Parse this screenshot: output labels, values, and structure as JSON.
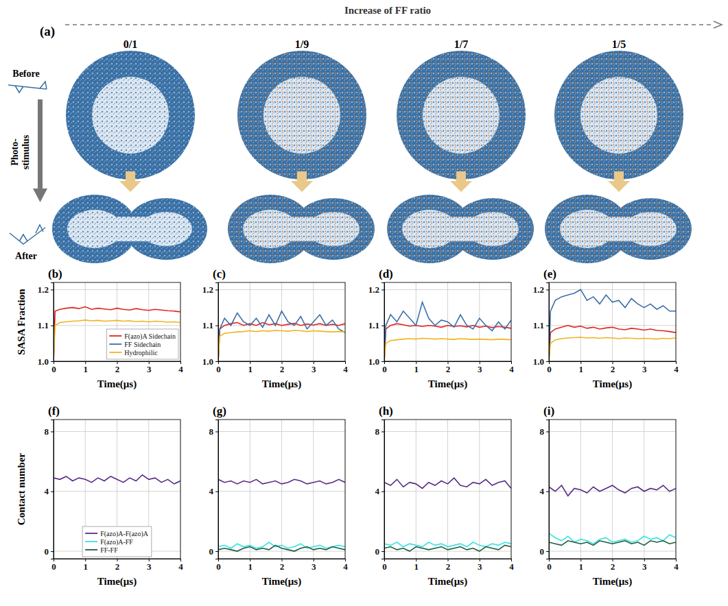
{
  "figure": {
    "title": "Increase of FF ratio",
    "label": "(a)",
    "ratios": [
      "0/1",
      "1/9",
      "1/7",
      "1/5"
    ],
    "before": "Before",
    "after": "After",
    "stimulus": "Photo-stimulus"
  },
  "chart_data": [
    {
      "type": "line",
      "title": "(b)",
      "xlabel": "Time(μs)",
      "ylabel": "SASA Fraction",
      "xlim": [
        0,
        4
      ],
      "xticks": [
        0,
        1,
        2,
        3,
        4
      ],
      "ylim": [
        1,
        1.22
      ],
      "yticks": [
        {
          "value": 1,
          "label": "1.0"
        },
        1.1,
        1.2
      ],
      "grid": true,
      "legend": "lower right",
      "x": [
        0,
        0.05,
        0.2,
        0.4,
        0.6,
        0.8,
        1.0,
        1.2,
        1.4,
        1.6,
        1.8,
        2.0,
        2.2,
        2.4,
        2.6,
        2.8,
        3.0,
        3.2,
        3.4,
        3.6,
        3.8,
        4.0
      ],
      "series": [
        {
          "name": "F(azo)A Sidechain",
          "color": "#e3231d",
          "values": [
            1,
            1.14,
            1.145,
            1.148,
            1.15,
            1.147,
            1.152,
            1.145,
            1.148,
            1.146,
            1.144,
            1.148,
            1.145,
            1.143,
            1.147,
            1.144,
            1.142,
            1.145,
            1.143,
            1.141,
            1.14,
            1.138
          ]
        },
        {
          "name": "FF Sidechain",
          "color": "#3b6fa8",
          "values": [
            null,
            null,
            null,
            null,
            null,
            null,
            null,
            null,
            null,
            null,
            null,
            null,
            null,
            null,
            null,
            null,
            null,
            null,
            null,
            null,
            null,
            null
          ]
        },
        {
          "name": "Hydrophilic",
          "color": "#f2b31c",
          "values": [
            1,
            1.1,
            1.108,
            1.11,
            1.112,
            1.113,
            1.115,
            1.113,
            1.114,
            1.112,
            1.113,
            1.114,
            1.112,
            1.113,
            1.111,
            1.112,
            1.11,
            1.112,
            1.111,
            1.109,
            1.11,
            1.108
          ]
        }
      ]
    },
    {
      "type": "line",
      "title": "(c)",
      "xlabel": "Time(μs)",
      "xlim": [
        0,
        4
      ],
      "xticks": [
        0,
        1,
        2,
        3,
        4
      ],
      "ylim": [
        1,
        1.22
      ],
      "yticks": [
        {
          "value": 1,
          "label": "1.0"
        },
        1.1,
        1.2
      ],
      "grid": true,
      "x": [
        0,
        0.05,
        0.2,
        0.4,
        0.6,
        0.8,
        1.0,
        1.2,
        1.4,
        1.6,
        1.8,
        2.0,
        2.2,
        2.4,
        2.6,
        2.8,
        3.0,
        3.2,
        3.4,
        3.6,
        3.8,
        4.0
      ],
      "series": [
        {
          "name": "F(azo)A Sidechain",
          "color": "#e3231d",
          "values": [
            1,
            1.09,
            1.1,
            1.105,
            1.108,
            1.1,
            1.105,
            1.1,
            1.108,
            1.102,
            1.105,
            1.1,
            1.103,
            1.106,
            1.1,
            1.104,
            1.101,
            1.105,
            1.1,
            1.103,
            1.1,
            1.105
          ]
        },
        {
          "name": "FF Sidechain",
          "color": "#3b6fa8",
          "values": [
            1,
            1.09,
            1.12,
            1.1,
            1.135,
            1.11,
            1.1,
            1.12,
            1.095,
            1.13,
            1.1,
            1.14,
            1.11,
            1.1,
            1.125,
            1.09,
            1.11,
            1.13,
            1.1,
            1.115,
            1.09,
            1.08
          ]
        },
        {
          "name": "Hydrophilic",
          "color": "#f2b31c",
          "values": [
            1,
            1.07,
            1.078,
            1.08,
            1.082,
            1.083,
            1.085,
            1.083,
            1.085,
            1.084,
            1.086,
            1.085,
            1.084,
            1.086,
            1.085,
            1.083,
            1.085,
            1.084,
            1.083,
            1.082,
            1.083,
            1.082
          ]
        }
      ]
    },
    {
      "type": "line",
      "title": "(d)",
      "xlabel": "Time(μs)",
      "xlim": [
        0,
        4
      ],
      "xticks": [
        0,
        1,
        2,
        3,
        4
      ],
      "ylim": [
        1,
        1.22
      ],
      "yticks": [
        {
          "value": 1,
          "label": "1.0"
        },
        1.1,
        1.2
      ],
      "grid": true,
      "x": [
        0,
        0.05,
        0.2,
        0.4,
        0.6,
        0.8,
        1.0,
        1.2,
        1.4,
        1.6,
        1.8,
        2.0,
        2.2,
        2.4,
        2.6,
        2.8,
        3.0,
        3.2,
        3.4,
        3.6,
        3.8,
        4.0
      ],
      "series": [
        {
          "name": "F(azo)A Sidechain",
          "color": "#e3231d",
          "values": [
            1,
            1.09,
            1.1,
            1.105,
            1.102,
            1.098,
            1.1,
            1.097,
            1.1,
            1.098,
            1.095,
            1.1,
            1.097,
            1.099,
            1.096,
            1.1,
            1.095,
            1.098,
            1.094,
            1.097,
            1.095,
            1.092
          ]
        },
        {
          "name": "FF Sidechain",
          "color": "#3b6fa8",
          "values": [
            1,
            1.1,
            1.13,
            1.11,
            1.14,
            1.12,
            1.1,
            1.165,
            1.12,
            1.1,
            1.115,
            1.11,
            1.095,
            1.13,
            1.1,
            1.09,
            1.12,
            1.1,
            1.085,
            1.11,
            1.09,
            1.115
          ]
        },
        {
          "name": "Hydrophilic",
          "color": "#f2b31c",
          "values": [
            1,
            1.05,
            1.058,
            1.06,
            1.062,
            1.063,
            1.062,
            1.064,
            1.063,
            1.062,
            1.063,
            1.062,
            1.061,
            1.063,
            1.062,
            1.061,
            1.062,
            1.061,
            1.06,
            1.062,
            1.061,
            1.06
          ]
        }
      ]
    },
    {
      "type": "line",
      "title": "(e)",
      "xlabel": "Time(μs)",
      "xlim": [
        0,
        4
      ],
      "xticks": [
        0,
        1,
        2,
        3,
        4
      ],
      "ylim": [
        1,
        1.22
      ],
      "yticks": [
        {
          "value": 1,
          "label": "1.0"
        },
        1.1,
        1.2
      ],
      "grid": true,
      "x": [
        0,
        0.05,
        0.2,
        0.4,
        0.6,
        0.8,
        1.0,
        1.2,
        1.4,
        1.6,
        1.8,
        2.0,
        2.2,
        2.4,
        2.6,
        2.8,
        3.0,
        3.2,
        3.4,
        3.6,
        3.8,
        4.0
      ],
      "series": [
        {
          "name": "F(azo)A Sidechain",
          "color": "#e3231d",
          "values": [
            1,
            1.08,
            1.09,
            1.095,
            1.1,
            1.095,
            1.098,
            1.092,
            1.095,
            1.09,
            1.093,
            1.095,
            1.09,
            1.088,
            1.092,
            1.09,
            1.087,
            1.09,
            1.086,
            1.085,
            1.083,
            1.08
          ]
        },
        {
          "name": "FF Sidechain",
          "color": "#3b6fa8",
          "values": [
            1,
            1.14,
            1.17,
            1.18,
            1.185,
            1.19,
            1.2,
            1.17,
            1.18,
            1.16,
            1.185,
            1.165,
            1.17,
            1.15,
            1.175,
            1.16,
            1.15,
            1.16,
            1.145,
            1.155,
            1.14,
            1.14
          ]
        },
        {
          "name": "Hydrophilic",
          "color": "#f2b31c",
          "values": [
            1,
            1.05,
            1.06,
            1.063,
            1.065,
            1.066,
            1.067,
            1.065,
            1.066,
            1.064,
            1.066,
            1.065,
            1.063,
            1.065,
            1.064,
            1.063,
            1.064,
            1.063,
            1.062,
            1.064,
            1.063,
            1.065
          ]
        }
      ]
    },
    {
      "type": "line",
      "title": "(f)",
      "xlabel": "Time(μs)",
      "ylabel": "Contact number",
      "xlim": [
        0,
        4
      ],
      "xticks": [
        0,
        1,
        2,
        3,
        4
      ],
      "ylim": [
        -0.5,
        8.8
      ],
      "yticks": [
        0,
        4,
        8
      ],
      "grid": true,
      "legend": "lower center",
      "x": [
        0,
        0.2,
        0.4,
        0.6,
        0.8,
        1.0,
        1.2,
        1.4,
        1.6,
        1.8,
        2.0,
        2.2,
        2.4,
        2.6,
        2.8,
        3.0,
        3.2,
        3.4,
        3.6,
        3.8,
        4.0
      ],
      "series": [
        {
          "name": "F(azo)A-F(azo)A",
          "color": "#5a2a86",
          "values": [
            4.9,
            4.8,
            5.0,
            4.7,
            4.9,
            4.8,
            4.6,
            4.9,
            4.7,
            5.0,
            4.8,
            4.6,
            4.9,
            4.7,
            5.1,
            4.8,
            4.9,
            4.6,
            4.8,
            4.5,
            4.7
          ]
        },
        {
          "name": "F(azo)A-FF",
          "color": "#35e3e3",
          "values": [
            null,
            null,
            null,
            null,
            null,
            null,
            null,
            null,
            null,
            null,
            null,
            null,
            null,
            null,
            null,
            null,
            null,
            null,
            null,
            null,
            null
          ]
        },
        {
          "name": "FF-FF",
          "color": "#1d5a3b",
          "values": [
            null,
            null,
            null,
            null,
            null,
            null,
            null,
            null,
            null,
            null,
            null,
            null,
            null,
            null,
            null,
            null,
            null,
            null,
            null,
            null,
            null
          ]
        }
      ]
    },
    {
      "type": "line",
      "title": "(g)",
      "xlabel": "Time(μs)",
      "xlim": [
        0,
        4
      ],
      "xticks": [
        0,
        1,
        2,
        3,
        4
      ],
      "ylim": [
        -0.5,
        8.8
      ],
      "yticks": [
        0,
        4,
        8
      ],
      "grid": true,
      "x": [
        0,
        0.2,
        0.4,
        0.6,
        0.8,
        1.0,
        1.2,
        1.4,
        1.6,
        1.8,
        2.0,
        2.2,
        2.4,
        2.6,
        2.8,
        3.0,
        3.2,
        3.4,
        3.6,
        3.8,
        4.0
      ],
      "series": [
        {
          "name": "F(azo)A-F(azo)A",
          "color": "#5a2a86",
          "values": [
            4.8,
            4.6,
            4.7,
            4.5,
            4.7,
            4.6,
            4.8,
            4.5,
            4.6,
            4.7,
            4.5,
            4.6,
            4.8,
            4.7,
            4.5,
            4.6,
            4.7,
            4.5,
            4.6,
            4.8,
            4.6
          ]
        },
        {
          "name": "F(azo)A-FF",
          "color": "#35e3e3",
          "values": [
            0.3,
            0.4,
            0.2,
            0.5,
            0.3,
            0.4,
            0.2,
            0.3,
            0.6,
            0.3,
            0.4,
            0.2,
            0.3,
            0.5,
            0.2,
            0.3,
            0.4,
            0.2,
            0.3,
            0.4,
            0.3
          ]
        },
        {
          "name": "FF-FF",
          "color": "#1d5a3b",
          "values": [
            0.1,
            0.2,
            0.1,
            0.0,
            0.2,
            0.3,
            0.1,
            0.2,
            0.1,
            0.4,
            0.2,
            0.1,
            0.0,
            0.2,
            0.3,
            0.1,
            0.2,
            0.1,
            0.3,
            0.2,
            0.1
          ]
        }
      ]
    },
    {
      "type": "line",
      "title": "(h)",
      "xlabel": "Time(μs)",
      "xlim": [
        0,
        4
      ],
      "xticks": [
        0,
        1,
        2,
        3,
        4
      ],
      "ylim": [
        -0.5,
        8.8
      ],
      "yticks": [
        0,
        4,
        8
      ],
      "grid": true,
      "x": [
        0,
        0.2,
        0.4,
        0.6,
        0.8,
        1.0,
        1.2,
        1.4,
        1.6,
        1.8,
        2.0,
        2.2,
        2.4,
        2.6,
        2.8,
        3.0,
        3.2,
        3.4,
        3.6,
        3.8,
        4.0
      ],
      "series": [
        {
          "name": "F(azo)A-F(azo)A",
          "color": "#5a2a86",
          "values": [
            4.6,
            4.4,
            4.8,
            4.3,
            4.6,
            4.5,
            4.2,
            4.6,
            4.4,
            4.7,
            4.5,
            4.9,
            4.4,
            4.3,
            4.6,
            4.5,
            4.8,
            4.4,
            4.6,
            4.7,
            4.2
          ]
        },
        {
          "name": "F(azo)A-FF",
          "color": "#35e3e3",
          "values": [
            0.5,
            0.4,
            0.6,
            0.3,
            0.5,
            0.4,
            0.3,
            0.6,
            0.4,
            0.5,
            0.3,
            0.4,
            0.5,
            0.3,
            0.6,
            0.4,
            0.3,
            0.5,
            0.4,
            0.6,
            0.5
          ]
        },
        {
          "name": "FF-FF",
          "color": "#1d5a3b",
          "values": [
            0.2,
            0.3,
            0.1,
            0.2,
            0.0,
            0.3,
            0.2,
            0.1,
            0.2,
            0.3,
            0.1,
            0.2,
            0.3,
            0.1,
            0.2,
            0.0,
            0.3,
            0.2,
            0.1,
            0.4,
            0.3
          ]
        }
      ]
    },
    {
      "type": "line",
      "title": "(i)",
      "xlabel": "Time(μs)",
      "xlim": [
        0,
        4
      ],
      "xticks": [
        0,
        1,
        2,
        3,
        4
      ],
      "ylim": [
        -0.5,
        8.8
      ],
      "yticks": [
        0,
        4,
        8
      ],
      "grid": true,
      "x": [
        0,
        0.2,
        0.4,
        0.6,
        0.8,
        1.0,
        1.2,
        1.4,
        1.6,
        1.8,
        2.0,
        2.2,
        2.4,
        2.6,
        2.8,
        3.0,
        3.2,
        3.4,
        3.6,
        3.8,
        4.0
      ],
      "series": [
        {
          "name": "F(azo)A-F(azo)A",
          "color": "#5a2a86",
          "values": [
            4.3,
            4.0,
            4.4,
            3.7,
            4.2,
            4.1,
            3.9,
            4.3,
            4.0,
            4.2,
            4.4,
            4.1,
            3.9,
            4.2,
            4.3,
            4.0,
            4.2,
            4.1,
            4.4,
            4.0,
            4.2
          ]
        },
        {
          "name": "F(azo)A-FF",
          "color": "#35e3e3",
          "values": [
            1.2,
            0.9,
            0.7,
            1.0,
            0.6,
            0.8,
            0.7,
            0.5,
            0.8,
            0.9,
            0.6,
            0.7,
            0.8,
            0.6,
            0.7,
            1.0,
            0.8,
            0.9,
            0.7,
            1.1,
            0.9
          ]
        },
        {
          "name": "FF-FF",
          "color": "#1d5a3b",
          "values": [
            0.6,
            0.5,
            0.4,
            0.7,
            0.6,
            0.5,
            0.6,
            0.4,
            0.7,
            0.6,
            0.5,
            0.6,
            0.7,
            0.5,
            0.6,
            0.4,
            0.7,
            0.6,
            0.7,
            0.5,
            0.6
          ]
        }
      ]
    }
  ]
}
